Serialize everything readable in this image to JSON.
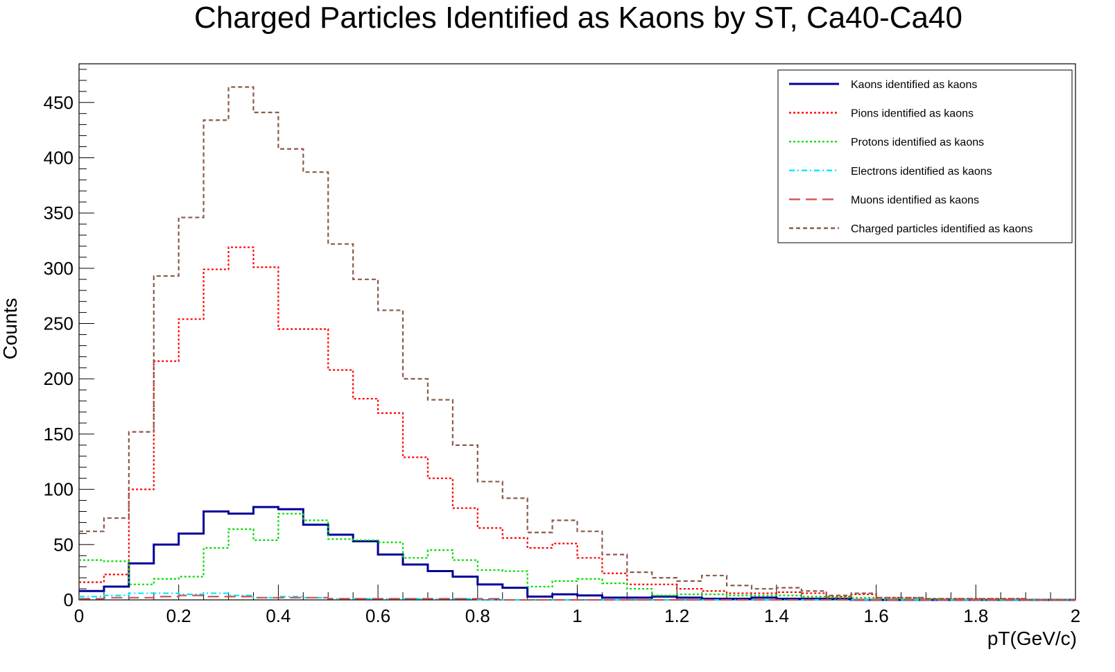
{
  "chart_data": {
    "type": "line",
    "step": true,
    "title": "Charged Particles Identified as Kaons by ST, Ca40-Ca40",
    "xlabel": "pT(GeV/c)",
    "ylabel": "Counts",
    "xlim": [
      0,
      2
    ],
    "ylim": [
      0,
      485
    ],
    "grid": false,
    "legend_position": "top-right",
    "bin_width": 0.05,
    "x_ticks": [
      {
        "value": 0,
        "label": "0"
      },
      {
        "value": 0.2,
        "label": "0.2"
      },
      {
        "value": 0.4,
        "label": "0.4"
      },
      {
        "value": 0.6,
        "label": "0.6"
      },
      {
        "value": 0.8,
        "label": "0.8"
      },
      {
        "value": 1.0,
        "label": "1"
      },
      {
        "value": 1.2,
        "label": "1.2"
      },
      {
        "value": 1.4,
        "label": "1.4"
      },
      {
        "value": 1.6,
        "label": "1.6"
      },
      {
        "value": 1.8,
        "label": "1.8"
      },
      {
        "value": 2.0,
        "label": "2"
      }
    ],
    "y_ticks": [
      {
        "value": 0,
        "label": "0"
      },
      {
        "value": 50,
        "label": "50"
      },
      {
        "value": 100,
        "label": "100"
      },
      {
        "value": 150,
        "label": "150"
      },
      {
        "value": 200,
        "label": "200"
      },
      {
        "value": 250,
        "label": "250"
      },
      {
        "value": 300,
        "label": "300"
      },
      {
        "value": 350,
        "label": "350"
      },
      {
        "value": 400,
        "label": "400"
      },
      {
        "value": 450,
        "label": "450"
      }
    ],
    "series": [
      {
        "name": "Kaons identified as kaons",
        "color": "#000099",
        "dash": "solid",
        "values": [
          8,
          12,
          33,
          50,
          60,
          80,
          78,
          84,
          82,
          68,
          59,
          53,
          41,
          32,
          26,
          21,
          14,
          11,
          3,
          5,
          4,
          2,
          2,
          3,
          2,
          1,
          1,
          2,
          1,
          1,
          1,
          0,
          0,
          0,
          0,
          0,
          0,
          0,
          0,
          0
        ]
      },
      {
        "name": "Pions identified as kaons",
        "color": "#ff0000",
        "dash": "dotted",
        "values": [
          16,
          23,
          100,
          216,
          254,
          299,
          319,
          301,
          245,
          245,
          208,
          182,
          169,
          129,
          110,
          83,
          65,
          56,
          47,
          51,
          38,
          24,
          14,
          14,
          10,
          8,
          6,
          6,
          7,
          6,
          3,
          5,
          2,
          2,
          1,
          1,
          1,
          1,
          0,
          0
        ]
      },
      {
        "name": "Protons identified as kaons",
        "color": "#00dd00",
        "dash": "dotted",
        "values": [
          36,
          35,
          14,
          19,
          21,
          47,
          64,
          54,
          78,
          72,
          55,
          54,
          52,
          38,
          45,
          36,
          27,
          26,
          12,
          17,
          19,
          15,
          10,
          4,
          5,
          5,
          4,
          4,
          4,
          3,
          2,
          2,
          1,
          1,
          1,
          0,
          0,
          0,
          0,
          0
        ]
      },
      {
        "name": "Electrons identified as kaons",
        "color": "#00e5ff",
        "dash": "dashdot",
        "values": [
          3,
          4,
          6,
          6,
          5,
          6,
          4,
          2,
          3,
          2,
          1,
          1,
          1,
          1,
          1,
          1,
          0,
          0,
          0,
          0,
          0,
          0,
          0,
          0,
          0,
          0,
          0,
          0,
          0,
          0,
          0,
          0,
          0,
          0,
          0,
          0,
          0,
          0,
          0,
          0
        ]
      },
      {
        "name": "Muons identified as kaons",
        "color": "#cc5555",
        "dash": "longdash",
        "values": [
          1,
          2,
          2,
          3,
          4,
          3,
          3,
          2,
          2,
          2,
          1,
          1,
          1,
          1,
          1,
          1,
          1,
          0,
          0,
          0,
          0,
          0,
          0,
          0,
          0,
          0,
          0,
          0,
          0,
          0,
          0,
          0,
          0,
          0,
          0,
          0,
          0,
          0,
          0,
          0
        ]
      },
      {
        "name": "Charged particles identified as kaons",
        "color": "#8b5a4a",
        "dash": "dashed",
        "values": [
          62,
          74,
          152,
          293,
          346,
          434,
          464,
          441,
          408,
          387,
          322,
          290,
          262,
          200,
          181,
          140,
          107,
          92,
          61,
          72,
          62,
          41,
          25,
          20,
          17,
          22,
          13,
          10,
          11,
          8,
          4,
          6,
          2,
          2,
          1,
          1,
          1,
          1,
          0,
          0
        ]
      }
    ]
  }
}
